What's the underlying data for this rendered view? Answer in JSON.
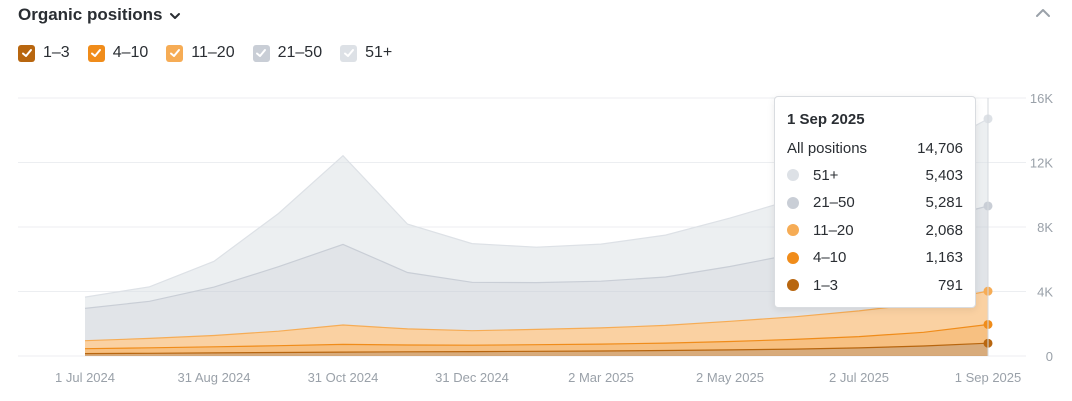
{
  "header": {
    "title": "Organic positions"
  },
  "legend": [
    {
      "label": "1–3",
      "color": "#b8660f"
    },
    {
      "label": "4–10",
      "color": "#f08c1a"
    },
    {
      "label": "11–20",
      "color": "#f6ac55"
    },
    {
      "label": "21–50",
      "color": "#c9ced6"
    },
    {
      "label": "51+",
      "color": "#dde1e6"
    }
  ],
  "tooltip": {
    "date": "1 Sep 2025",
    "total_label": "All positions",
    "total_value": "14,706",
    "rows": [
      {
        "label": "51+",
        "value": "5,403",
        "color": "#dde1e6"
      },
      {
        "label": "21–50",
        "value": "5,281",
        "color": "#c9ced6"
      },
      {
        "label": "11–20",
        "value": "2,068",
        "color": "#f6ac55"
      },
      {
        "label": "4–10",
        "value": "1,163",
        "color": "#f08c1a"
      },
      {
        "label": "1–3",
        "value": "791",
        "color": "#b8660f"
      }
    ]
  },
  "chart_data": {
    "type": "area",
    "stacked": true,
    "x_ticks": [
      "1 Jul 2024",
      "31 Aug 2024",
      "31 Oct 2024",
      "31 Dec 2024",
      "2 Mar 2025",
      "2 May 2025",
      "2 Jul 2025",
      "1 Sep 2025"
    ],
    "y_ticks": [
      "0",
      "4K",
      "8K",
      "12K",
      "16K"
    ],
    "ylim": [
      0,
      16000
    ],
    "grid": true,
    "x": [
      "Jul 2024",
      "Aug 2024",
      "Sep 2024",
      "Oct 2024",
      "Nov 2024",
      "Dec 2024",
      "Jan 2025",
      "Feb 2025",
      "Mar 2025",
      "Apr 2025",
      "May 2025",
      "Jun 2025",
      "Jul 2025",
      "Aug 2025",
      "1 Sep 2025"
    ],
    "series": [
      {
        "name": "1–3",
        "color": "#b8660f",
        "values": [
          150,
          170,
          190,
          220,
          240,
          260,
          270,
          290,
          310,
          340,
          380,
          430,
          500,
          620,
          791
        ]
      },
      {
        "name": "4–10",
        "color": "#f08c1a",
        "values": [
          300,
          340,
          380,
          420,
          480,
          420,
          400,
          410,
          430,
          460,
          520,
          600,
          700,
          850,
          1163
        ]
      },
      {
        "name": "11–20",
        "color": "#f6ac55",
        "values": [
          500,
          580,
          700,
          900,
          1200,
          1000,
          900,
          950,
          1000,
          1100,
          1250,
          1400,
          1600,
          1800,
          2068
        ]
      },
      {
        "name": "21–50",
        "color": "#c9ced6",
        "values": [
          2000,
          2300,
          3000,
          4000,
          5000,
          3500,
          3000,
          2900,
          2900,
          3000,
          3400,
          3900,
          4500,
          5000,
          5281
        ]
      },
      {
        "name": "51+",
        "color": "#dde1e6",
        "values": [
          700,
          900,
          1600,
          3300,
          5500,
          3000,
          2400,
          2200,
          2300,
          2600,
          3000,
          3400,
          3900,
          4300,
          5403
        ]
      }
    ]
  }
}
